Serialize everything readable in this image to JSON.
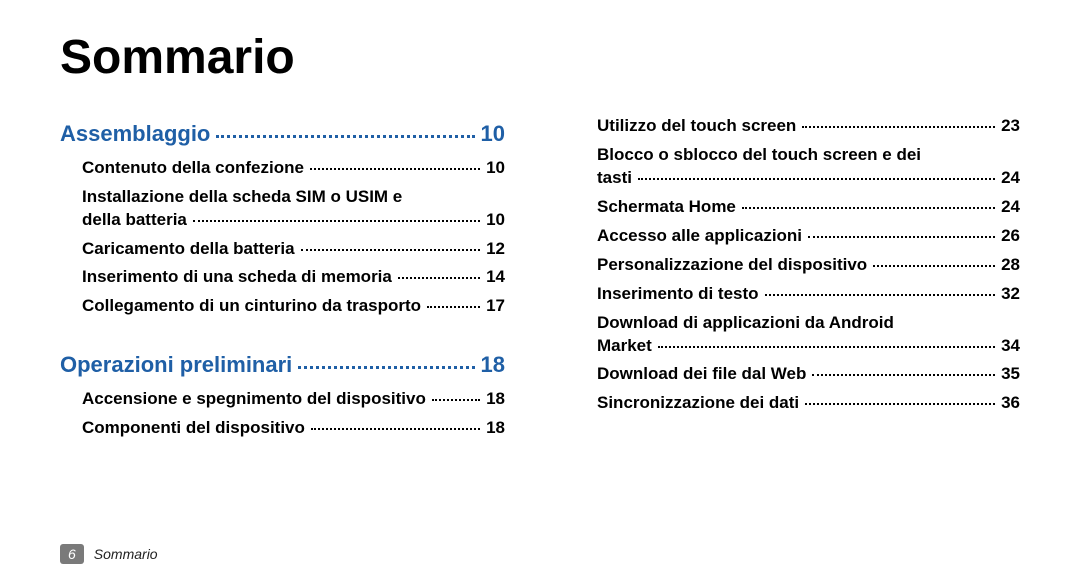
{
  "title": "Sommario",
  "footer": {
    "page": "6",
    "label": "Sommario"
  },
  "columns": [
    {
      "entries": [
        {
          "type": "section",
          "label": "Assemblaggio",
          "page": "10"
        },
        {
          "type": "item",
          "label": "Contenuto della confezione",
          "page": "10"
        },
        {
          "type": "item-wrap",
          "line1": "Installazione della scheda SIM o USIM e",
          "line2": "della batteria",
          "page": "10"
        },
        {
          "type": "item",
          "label": "Caricamento della batteria",
          "page": "12"
        },
        {
          "type": "item",
          "label": "Inserimento di una scheda di memoria",
          "page": "14"
        },
        {
          "type": "item",
          "label": "Collegamento di un cinturino da trasporto",
          "page": "17"
        },
        {
          "type": "gap"
        },
        {
          "type": "section",
          "label": "Operazioni preliminari",
          "page": "18"
        },
        {
          "type": "item",
          "label": "Accensione e spegnimento del dispositivo",
          "page": "18"
        },
        {
          "type": "item",
          "label": "Componenti del dispositivo",
          "page": "18"
        }
      ]
    },
    {
      "entries": [
        {
          "type": "item",
          "label": "Utilizzo del touch screen",
          "page": "23"
        },
        {
          "type": "item-wrap",
          "line1": "Blocco o sblocco del touch screen e dei",
          "line2": "tasti",
          "page": "24"
        },
        {
          "type": "item",
          "label": "Schermata Home",
          "page": "24"
        },
        {
          "type": "item",
          "label": "Accesso alle applicazioni",
          "page": "26"
        },
        {
          "type": "item",
          "label": "Personalizzazione del dispositivo",
          "page": "28"
        },
        {
          "type": "item",
          "label": "Inserimento di testo",
          "page": "32"
        },
        {
          "type": "item-wrap",
          "line1": "Download di applicazioni da Android",
          "line2": "Market",
          "page": "34"
        },
        {
          "type": "item",
          "label": "Download dei file dal Web",
          "page": "35"
        },
        {
          "type": "item",
          "label": "Sincronizzazione dei dati",
          "page": "36"
        }
      ]
    }
  ]
}
